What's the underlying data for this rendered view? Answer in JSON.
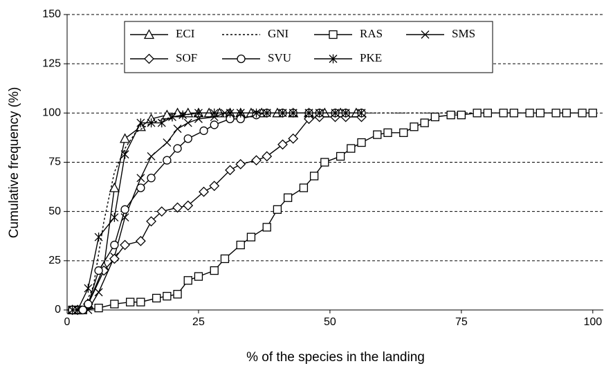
{
  "chart_data": {
    "type": "line",
    "xlabel": "% of the species in the landing",
    "ylabel": "Cumulative frequency (%)",
    "xlim": [
      0,
      102
    ],
    "ylim": [
      0,
      150
    ],
    "xticks": [
      0,
      25,
      50,
      75,
      100
    ],
    "yticks": [
      0,
      25,
      50,
      75,
      100,
      125,
      150
    ],
    "grid": true,
    "legend": "upper center",
    "series": [
      {
        "name": "ECI",
        "color": "#000000",
        "marker": "triangle",
        "dash": "solid",
        "x": [
          1,
          2,
          4,
          7,
          9,
          11,
          14,
          16,
          19,
          21,
          23,
          25,
          27,
          29,
          31,
          33,
          35,
          37,
          40,
          43,
          46,
          49,
          52,
          55
        ],
        "values": [
          0,
          0,
          3,
          22,
          62,
          87,
          93,
          97,
          99,
          100,
          100,
          100,
          100,
          100,
          100,
          100,
          100,
          100,
          100,
          100,
          100,
          100,
          100,
          100
        ]
      },
      {
        "name": "GNI",
        "color": "#000000",
        "marker": "none",
        "dash": "dotted",
        "x": [
          1,
          3,
          5,
          7,
          9,
          11,
          13,
          16,
          20,
          25,
          30,
          40,
          50,
          60,
          70,
          80,
          90,
          100
        ],
        "values": [
          0,
          0,
          12,
          45,
          70,
          82,
          90,
          95,
          98,
          100,
          100,
          100,
          100,
          100,
          100,
          100,
          100,
          100
        ]
      },
      {
        "name": "RAS",
        "color": "#000000",
        "marker": "square",
        "dash": "solid",
        "x": [
          1,
          2,
          3,
          6,
          9,
          12,
          14,
          17,
          19,
          21,
          23,
          25,
          28,
          30,
          33,
          35,
          38,
          40,
          42,
          45,
          47,
          49,
          52,
          54,
          56,
          59,
          61,
          64,
          66,
          68,
          70,
          73,
          75,
          78,
          80,
          83,
          85,
          88,
          90,
          93,
          95,
          98,
          100
        ],
        "values": [
          0,
          0,
          0,
          1,
          3,
          4,
          4,
          6,
          7,
          8,
          15,
          17,
          20,
          26,
          33,
          37,
          42,
          51,
          57,
          62,
          68,
          75,
          78,
          82,
          85,
          89,
          90,
          90,
          93,
          95,
          98,
          99,
          99,
          100,
          100,
          100,
          100,
          100,
          100,
          100,
          100,
          100,
          100
        ]
      },
      {
        "name": "SMS",
        "color": "#000000",
        "marker": "x",
        "dash": "solid",
        "x": [
          1,
          2,
          4,
          6,
          9,
          11,
          14,
          16,
          19,
          21,
          23,
          25,
          28,
          30,
          33,
          36,
          38,
          41,
          43,
          46,
          48,
          51,
          53,
          56
        ],
        "values": [
          0,
          0,
          0,
          9,
          27,
          47,
          67,
          78,
          85,
          92,
          95,
          97,
          98,
          100,
          100,
          100,
          100,
          100,
          100,
          100,
          100,
          100,
          100,
          100
        ]
      },
      {
        "name": "SOF",
        "color": "#000000",
        "marker": "diamond",
        "dash": "solid",
        "x": [
          1,
          2,
          4,
          7,
          9,
          11,
          14,
          16,
          18,
          21,
          23,
          26,
          28,
          31,
          33,
          36,
          38,
          41,
          43,
          46,
          48,
          51,
          53,
          56
        ],
        "values": [
          0,
          0,
          3,
          20,
          26,
          33,
          35,
          45,
          50,
          52,
          53,
          60,
          63,
          71,
          74,
          76,
          78,
          84,
          87,
          97,
          98,
          98,
          98,
          98
        ]
      },
      {
        "name": "SVU",
        "color": "#000000",
        "marker": "circle",
        "dash": "solid",
        "x": [
          1,
          3,
          4,
          6,
          9,
          11,
          14,
          16,
          19,
          21,
          23,
          26,
          28,
          31,
          33,
          36,
          38,
          41,
          43,
          46,
          48,
          51,
          53,
          56
        ],
        "values": [
          0,
          0,
          3,
          20,
          33,
          51,
          62,
          67,
          76,
          82,
          87,
          91,
          94,
          97,
          97,
          99,
          100,
          100,
          100,
          100,
          100,
          100,
          100,
          100
        ]
      },
      {
        "name": "PKE",
        "color": "#000000",
        "marker": "asterisk",
        "dash": "solid",
        "x": [
          1,
          2,
          4,
          6,
          9,
          11,
          14,
          16,
          18,
          20,
          22,
          25,
          28,
          31,
          33,
          36,
          38,
          41,
          43,
          46,
          48,
          51,
          53,
          56
        ],
        "values": [
          0,
          0,
          11,
          37,
          47,
          79,
          95,
          95,
          95,
          98,
          99,
          100,
          100,
          100,
          100,
          100,
          100,
          100,
          100,
          100,
          100,
          100,
          100,
          100
        ]
      }
    ]
  }
}
